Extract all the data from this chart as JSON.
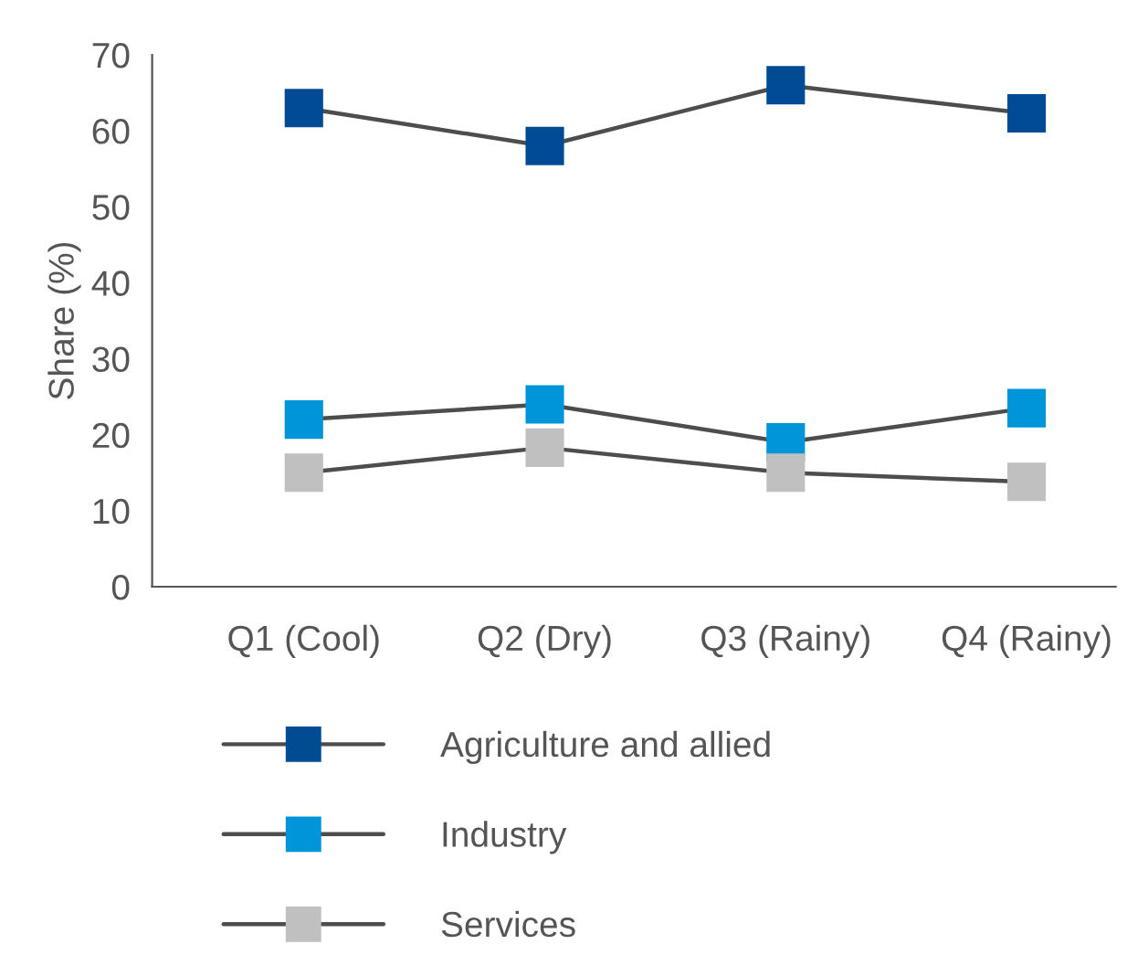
{
  "chart_data": {
    "type": "line",
    "ylabel": "Share (%)",
    "categories": [
      "Q1 (Cool)",
      "Q2 (Dry)",
      "Q3 (Rainy)",
      "Q4 (Rainy)"
    ],
    "series": [
      {
        "name": "Agriculture and allied",
        "color": "#004b93",
        "values": [
          63,
          58,
          66,
          62.3
        ]
      },
      {
        "name": "Industry",
        "color": "#0094d8",
        "values": [
          22,
          24,
          19,
          23.5
        ]
      },
      {
        "name": "Services",
        "color": "#c0c0c0",
        "values": [
          15,
          18.3,
          15,
          13.8
        ]
      }
    ],
    "ylim": [
      0,
      70
    ],
    "yticks": [
      0,
      10,
      20,
      30,
      40,
      50,
      60,
      70
    ],
    "marker": "square",
    "grid": false,
    "legend": "bottom"
  }
}
